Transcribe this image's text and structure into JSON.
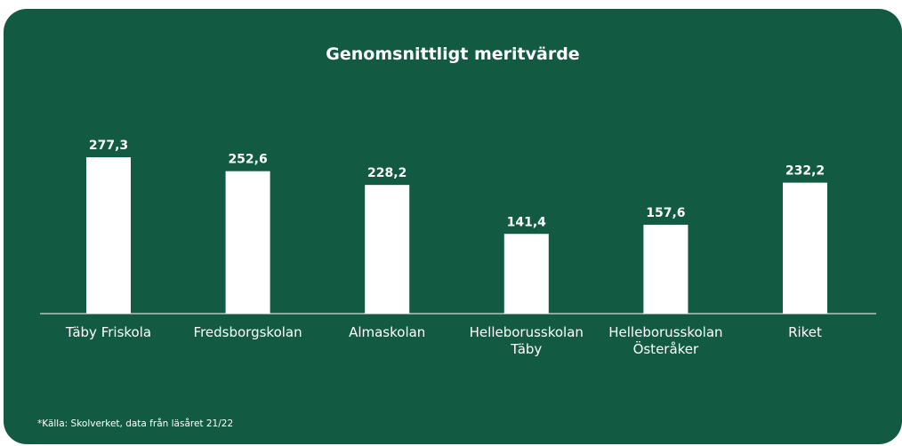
{
  "chart_data": {
    "type": "bar",
    "title": "Genomsnittligt meritvärde",
    "categories": [
      "Täby Friskola",
      "Fredsborgskolan",
      "Almaskolan",
      "Helleborusskolan Täby",
      "Helleborusskolan Österåker",
      "Riket"
    ],
    "values": [
      277.3,
      252.6,
      228.2,
      141.4,
      157.6,
      232.2
    ],
    "value_labels": [
      "277,3",
      "252,6",
      "228,2",
      "141,4",
      "157,6",
      "232,2"
    ],
    "color": "#ffffff",
    "footnote": "*Källa: Skolverket, data från läsåret 21/22"
  }
}
